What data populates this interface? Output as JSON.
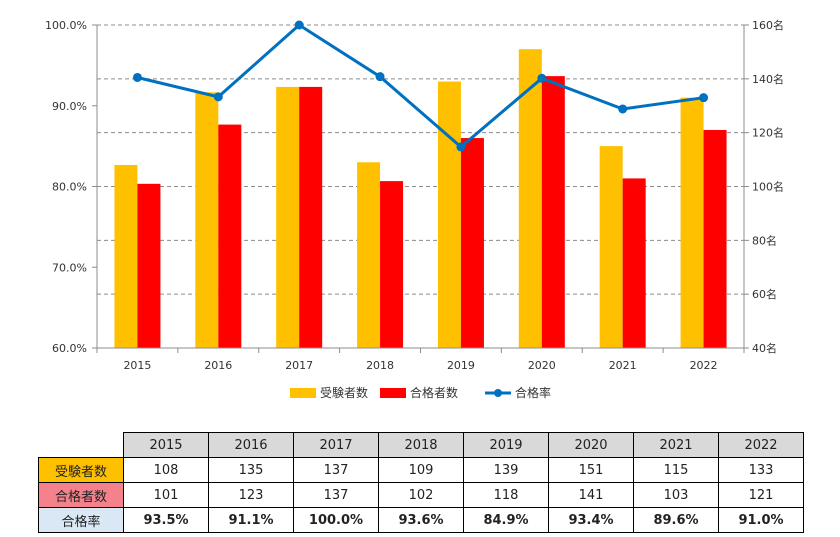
{
  "chart_data": {
    "type": "bar+line",
    "categories": [
      "2015",
      "2016",
      "2017",
      "2018",
      "2019",
      "2020",
      "2021",
      "2022"
    ],
    "series": [
      {
        "name": "受験者数",
        "type": "bar",
        "axis": "right",
        "color": "#ffc000",
        "values": [
          108,
          135,
          137,
          109,
          139,
          151,
          115,
          133
        ]
      },
      {
        "name": "合格者数",
        "type": "bar",
        "axis": "right",
        "color": "#ff0000",
        "values": [
          101,
          123,
          137,
          102,
          118,
          141,
          103,
          121
        ]
      },
      {
        "name": "合格率",
        "type": "line",
        "axis": "left",
        "color": "#0070c0",
        "values": [
          93.5,
          91.1,
          100.0,
          93.6,
          84.9,
          93.4,
          89.6,
          91.0
        ]
      }
    ],
    "left_axis": {
      "min": 60,
      "max": 100,
      "ticks": [
        "60.0%",
        "70.0%",
        "80.0%",
        "90.0%",
        "100.0%"
      ]
    },
    "right_axis": {
      "min": 40,
      "max": 160,
      "ticks": [
        "40名",
        "60名",
        "80名",
        "100名",
        "120名",
        "140名",
        "160名"
      ]
    },
    "gridlines": "dashed",
    "legend": "bottom",
    "legend_entries": [
      "受験者数",
      "合格者数",
      "合格率"
    ]
  },
  "table": {
    "years": [
      "2015",
      "2016",
      "2017",
      "2018",
      "2019",
      "2020",
      "2021",
      "2022"
    ],
    "rows": [
      {
        "label": "受験者数",
        "cells": [
          "108",
          "135",
          "137",
          "109",
          "139",
          "151",
          "115",
          "133"
        ]
      },
      {
        "label": "合格者数",
        "cells": [
          "101",
          "123",
          "137",
          "102",
          "118",
          "141",
          "103",
          "121"
        ]
      },
      {
        "label": "合格率",
        "cells": [
          "93.5%",
          "91.1%",
          "100.0%",
          "93.6%",
          "84.9%",
          "93.4%",
          "89.6%",
          "91.0%"
        ]
      }
    ]
  }
}
